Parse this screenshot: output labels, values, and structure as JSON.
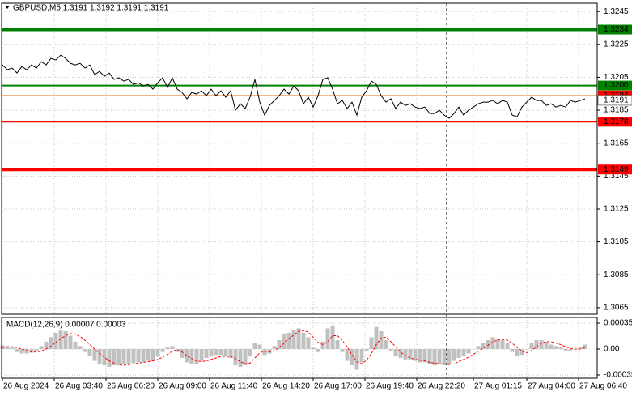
{
  "chart_data": {
    "type": "line",
    "title": "GBPUSD,M5  1.3191 1.3192 1.3191 1.3191",
    "color": "#000000",
    "grid": true,
    "xlim": [
      52.5,
      1897.5
    ],
    "xticks": [
      {
        "value": 60,
        "label": "26 Aug 2024"
      },
      {
        "value": 220,
        "label": "26 Aug 03:40"
      },
      {
        "value": 380,
        "label": "26 Aug 06:20"
      },
      {
        "value": 540,
        "label": "26 Aug 09:00"
      },
      {
        "value": 700,
        "label": "26 Aug 11:40"
      },
      {
        "value": 860,
        "label": "26 Aug 14:20"
      },
      {
        "value": 1020,
        "label": "26 Aug 17:00"
      },
      {
        "value": 1180,
        "label": "26 Aug 19:40"
      },
      {
        "value": 1340,
        "label": "26 Aug 22:20"
      },
      {
        "value": 1515,
        "label": "27 Aug 01:15"
      },
      {
        "value": 1680,
        "label": "27 Aug 04:00"
      },
      {
        "value": 1840,
        "label": "27 Aug 06:40"
      }
    ],
    "ylim": [
      1.3061,
      1.325
    ],
    "yticks": [
      1.3245,
      1.3225,
      1.3205,
      1.3185,
      1.3165,
      1.3145,
      1.3125,
      1.3105,
      1.3085,
      1.3065
    ],
    "x": [
      60,
      75,
      90,
      105,
      120,
      135,
      150,
      165,
      180,
      195,
      210,
      225,
      240,
      255,
      270,
      285,
      300,
      315,
      330,
      345,
      360,
      375,
      390,
      405,
      420,
      435,
      450,
      465,
      480,
      495,
      510,
      525,
      540,
      555,
      570,
      585,
      600,
      615,
      630,
      645,
      660,
      675,
      690,
      705,
      720,
      735,
      750,
      765,
      780,
      795,
      810,
      825,
      840,
      855,
      870,
      885,
      900,
      915,
      930,
      945,
      960,
      975,
      990,
      1005,
      1020,
      1035,
      1050,
      1065,
      1080,
      1095,
      1110,
      1125,
      1140,
      1155,
      1170,
      1185,
      1200,
      1215,
      1230,
      1245,
      1260,
      1275,
      1290,
      1305,
      1320,
      1335,
      1350,
      1365,
      1380,
      1395,
      1410,
      1425,
      1440,
      1455,
      1470,
      1485,
      1500,
      1515,
      1530,
      1545,
      1560,
      1575,
      1590,
      1605,
      1620,
      1635,
      1650,
      1665,
      1680,
      1695,
      1710,
      1725,
      1740,
      1755,
      1770,
      1785,
      1800,
      1815,
      1830,
      1845,
      1860
    ],
    "values": [
      1.32125,
      1.32096,
      1.32106,
      1.32076,
      1.32115,
      1.32096,
      1.32125,
      1.32106,
      1.32145,
      1.32125,
      1.32165,
      1.32155,
      1.32184,
      1.32165,
      1.32135,
      1.32125,
      1.32135,
      1.32106,
      1.32125,
      1.32066,
      1.32086,
      1.32056,
      1.32076,
      1.32037,
      1.32047,
      1.32027,
      1.32037,
      1.32007,
      1.32017,
      1.31997,
      1.32007,
      1.31978,
      1.32017,
      1.32047,
      1.31988,
      1.32047,
      1.31978,
      1.31958,
      1.31919,
      1.31958,
      1.31948,
      1.31968,
      1.31938,
      1.31978,
      1.31938,
      1.31968,
      1.31929,
      1.31968,
      1.3185,
      1.31889,
      1.3186,
      1.31929,
      1.32037,
      1.31899,
      1.3182,
      1.31879,
      1.31909,
      1.31938,
      1.31978,
      1.31948,
      1.31997,
      1.31968,
      1.31889,
      1.31929,
      1.31869,
      1.31938,
      1.32037,
      1.32047,
      1.31978,
      1.31889,
      1.31909,
      1.3186,
      1.31899,
      1.3182,
      1.31929,
      1.31968,
      1.32027,
      1.32007,
      1.31938,
      1.31899,
      1.31919,
      1.3186,
      1.31899,
      1.31879,
      1.31889,
      1.31869,
      1.3186,
      1.31869,
      1.3183,
      1.3183,
      1.3185,
      1.3182,
      1.31801,
      1.3183,
      1.31869,
      1.3182,
      1.3185,
      1.31869,
      1.31889,
      1.31899,
      1.31899,
      1.31909,
      1.31889,
      1.31909,
      1.31899,
      1.3182,
      1.3181,
      1.31869,
      1.31899,
      1.31929,
      1.31909,
      1.31909,
      1.31879,
      1.31889,
      1.31869,
      1.31879,
      1.31869,
      1.31909,
      1.31899,
      1.31909,
      1.31919
    ],
    "levels": [
      {
        "value": 1.3234,
        "color": "#008000",
        "width": 4
      },
      {
        "value": 1.32,
        "label": "1.3200",
        "color": "#008000",
        "width": 2
      },
      {
        "value": 1.3194,
        "color": "#f0a060",
        "label_color": "#ff0000",
        "width": 1
      },
      {
        "value": 1.3178,
        "color": "#ff0000",
        "width": 2
      },
      {
        "value": 1.3149,
        "color": "#ff0000",
        "width": 4
      }
    ],
    "last_price": 1.3191,
    "macd": {
      "title": "MACD(12,26,9) 0.00007 0.00003",
      "ylim": [
        -0.000394,
        0.000427
      ],
      "yticks": [
        0.00035,
        {
          "value": 0,
          "label": "0.00"
        },
        -0.00035
      ],
      "histogram": {
        "color": "#c0c0c0",
        "values": [
          5e-05,
          4e-05,
          2e-05,
          -4e-05,
          -6e-05,
          -6e-05,
          -5e-05,
          -2e-05,
          4e-05,
          0.0001,
          0.00016,
          0.00022,
          0.00025,
          0.00024,
          0.00018,
          0.0001,
          4e-05,
          -4e-05,
          -0.0001,
          -0.00016,
          -0.0002,
          -0.00022,
          -0.00024,
          -0.00022,
          -0.00022,
          -0.0002,
          -0.0002,
          -0.00019,
          -0.00018,
          -0.00018,
          -0.00016,
          -0.00016,
          -0.0001,
          -4e-05,
          2e-05,
          4e-05,
          -4e-05,
          -0.00012,
          -0.00018,
          -0.0002,
          -0.0002,
          -0.00016,
          -0.00012,
          -0.0001,
          -8e-05,
          -8e-05,
          -0.0001,
          -0.00012,
          -0.00022,
          -0.00024,
          -0.00022,
          -0.0001,
          8e-05,
          6e-05,
          -8e-05,
          -6e-05,
          4e-05,
          0.00012,
          0.0002,
          0.00022,
          0.00026,
          0.00028,
          0.00022,
          0.00016,
          2e-05,
          -4e-05,
          0.0001,
          0.00028,
          0.00032,
          0.00012,
          -4e-05,
          -0.00016,
          -0.00022,
          -0.00028,
          -0.00018,
          -2e-05,
          0.00016,
          0.0003,
          0.00024,
          0.00012,
          -2e-05,
          -0.0001,
          -0.00012,
          -0.00014,
          -0.00014,
          -0.00016,
          -0.00018,
          -0.00018,
          -0.0002,
          -0.00022,
          -0.0002,
          -0.00022,
          -0.0002,
          -0.00016,
          -0.00012,
          -0.0001,
          -6e-05,
          0,
          4e-05,
          8e-05,
          0.00012,
          0.00016,
          0.00014,
          0.00012,
          8e-05,
          -4e-05,
          -0.0001,
          -8e-05,
          0,
          8e-05,
          0.00012,
          0.00012,
          0.0001,
          6e-05,
          4e-05,
          2e-05,
          -2e-05,
          -2e-05,
          0,
          2e-05,
          6e-05
        ]
      },
      "signal": {
        "color": "#ff0000",
        "values": [
          2e-05,
          3e-05,
          3e-05,
          2e-05,
          0,
          -2e-05,
          -4e-05,
          -4e-05,
          -3e-05,
          0,
          4e-05,
          9e-05,
          0.00014,
          0.00018,
          0.00021,
          0.0002,
          0.00017,
          0.00012,
          6e-05,
          0,
          -6e-05,
          -0.00011,
          -0.00016,
          -0.00019,
          -0.00021,
          -0.00022,
          -0.00021,
          -0.0002,
          -0.00019,
          -0.00018,
          -0.00017,
          -0.00016,
          -0.00014,
          -0.00011,
          -7e-05,
          -3e-05,
          -1e-05,
          -4e-05,
          -9e-05,
          -0.00013,
          -0.00016,
          -0.00017,
          -0.00016,
          -0.00014,
          -0.00012,
          -0.0001,
          -0.0001,
          -0.0001,
          -0.00013,
          -0.00017,
          -0.0002,
          -0.00019,
          -0.00012,
          -5e-05,
          -3e-05,
          -4e-05,
          -2e-05,
          2e-05,
          8e-05,
          0.00014,
          0.00019,
          0.00024,
          0.00025,
          0.00023,
          0.00016,
          9e-05,
          6e-05,
          0.0001,
          0.00018,
          0.00018,
          0.00012,
          3e-05,
          -8e-05,
          -0.00017,
          -0.0002,
          -0.00015,
          -6e-05,
          6e-05,
          0.00015,
          0.00016,
          0.0001,
          3e-05,
          -4e-05,
          -9e-05,
          -0.00012,
          -0.00014,
          -0.00015,
          -0.00016,
          -0.00018,
          -0.00019,
          -0.0002,
          -0.0002,
          -0.00021,
          -0.0002,
          -0.00017,
          -0.00014,
          -0.00011,
          -7e-05,
          -3e-05,
          1e-05,
          5e-05,
          0.0001,
          0.00012,
          0.00013,
          0.00012,
          8e-05,
          2e-05,
          -3e-05,
          -5e-05,
          -2e-05,
          3e-05,
          8e-05,
          0.0001,
          0.0001,
          8e-05,
          6e-05,
          3e-05,
          1e-05,
          0,
          0,
          2e-05
        ]
      }
    }
  }
}
